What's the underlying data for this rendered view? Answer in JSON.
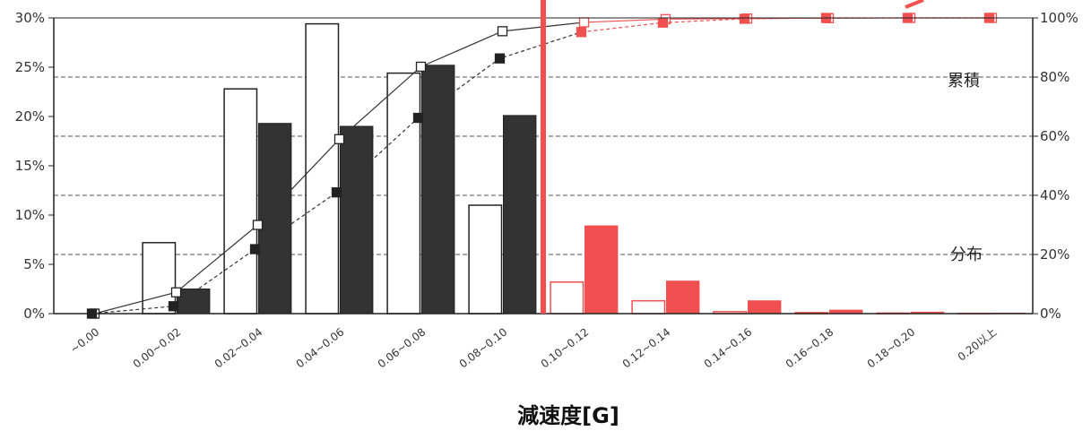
{
  "chart_data": {
    "type": "bar",
    "xlabel": "減速度[G]",
    "categories": [
      "~0.00",
      "0.00~0.02",
      "0.02~0.04",
      "0.04~0.06",
      "0.06~0.08",
      "0.08~0.10",
      "0.10~0.12",
      "0.12~0.14",
      "0.14~0.16",
      "0.16~0.18",
      "0.18~0.20",
      "0.20以上"
    ],
    "y_left": {
      "ticks": [
        "0%",
        "5%",
        "10%",
        "15%",
        "20%",
        "25%",
        "30%"
      ],
      "ylim": [
        0,
        30
      ]
    },
    "y_right": {
      "ticks": [
        "0%",
        "20%",
        "40%",
        "60%",
        "80%",
        "100%"
      ],
      "ylim": [
        0,
        100
      ]
    },
    "series": [
      {
        "kind": "bar",
        "style": "white",
        "values": [
          0,
          7.2,
          22.8,
          29.4,
          24.4,
          11.0,
          3.2,
          1.3,
          0.2,
          0.1,
          0.05,
          0.02
        ]
      },
      {
        "kind": "bar",
        "style": "black",
        "values": [
          0,
          2.5,
          19.3,
          19.0,
          25.2,
          20.1,
          8.9,
          3.3,
          1.3,
          0.35,
          0.15,
          0.05
        ]
      },
      {
        "kind": "line",
        "style": "white",
        "axis": "right",
        "values": [
          0,
          7.2,
          30.0,
          59.0,
          83.5,
          95.5,
          98.5,
          99.6,
          99.8,
          99.9,
          100,
          100
        ]
      },
      {
        "kind": "line",
        "style": "black",
        "axis": "right",
        "values": [
          0,
          2.5,
          21.8,
          41.0,
          66.2,
          86.3,
          95.2,
          98.4,
          99.7,
          100,
          100,
          100
        ]
      }
    ],
    "annotations": [
      "累積",
      "分布"
    ],
    "highlight_from_index": 6,
    "grid": "dashed-horizontal",
    "colors": {
      "highlight": "#f05050",
      "black_bar": "#333333",
      "axis": "#222222",
      "grid": "#555555"
    }
  }
}
